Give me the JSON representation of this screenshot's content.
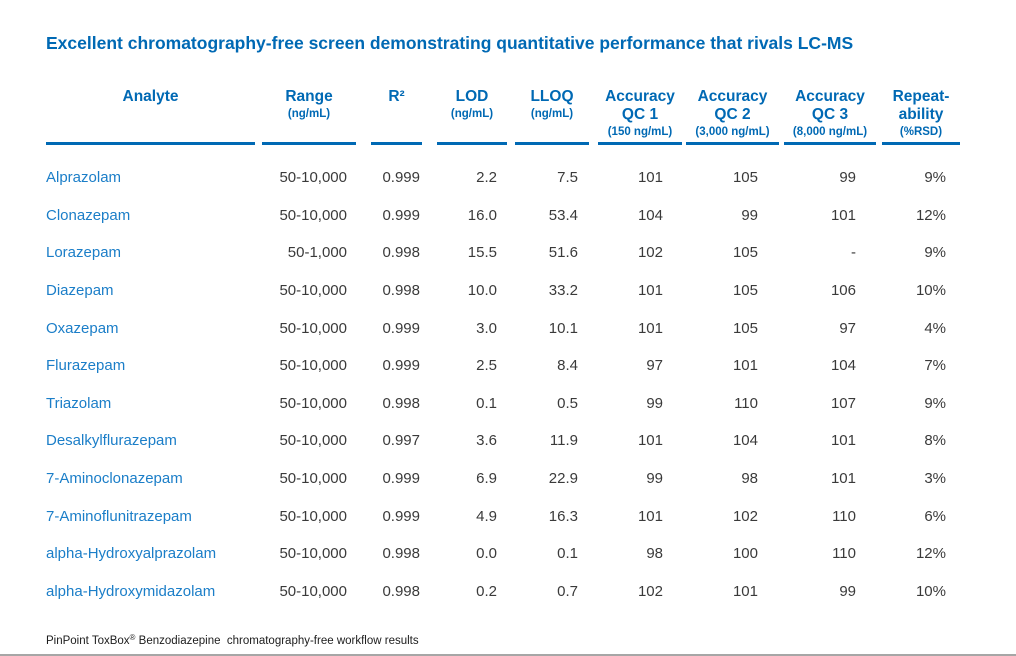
{
  "colors": {
    "header_blue": "#0069b4",
    "analyte_blue": "#1b7ec8",
    "value_text": "#3a3a3a",
    "footer_text": "#1c1c1c",
    "divider_gray": "#a6a6a6"
  },
  "chart_data": {
    "type": "table",
    "title": "Excellent chromatography-free screen demonstrating quantitative performance that rivals LC-MS",
    "columns": [
      {
        "key": "analyte",
        "label": "Analyte",
        "sub": ""
      },
      {
        "key": "range",
        "label": "Range",
        "sub": "(ng/mL)"
      },
      {
        "key": "r2",
        "label": "R²",
        "sub": ""
      },
      {
        "key": "lod",
        "label": "LOD",
        "sub": "(ng/mL)"
      },
      {
        "key": "lloq",
        "label": "LLOQ",
        "sub": "(ng/mL)"
      },
      {
        "key": "qc1",
        "label": "Accuracy\nQC 1",
        "sub": "(150 ng/mL)"
      },
      {
        "key": "qc2",
        "label": "Accuracy\nQC 2",
        "sub": "(3,000 ng/mL)"
      },
      {
        "key": "qc3",
        "label": "Accuracy\nQC 3",
        "sub": "(8,000 ng/mL)"
      },
      {
        "key": "rsd",
        "label": "Repeat-\nability",
        "sub": "(%RSD)"
      }
    ],
    "rows": [
      [
        "Alprazolam",
        "50-10,000",
        "0.999",
        "2.2",
        "7.5",
        "101",
        "105",
        "99",
        "9%"
      ],
      [
        "Clonazepam",
        "50-10,000",
        "0.999",
        "16.0",
        "53.4",
        "104",
        "99",
        "101",
        "12%"
      ],
      [
        "Lorazepam",
        "50-1,000",
        "0.998",
        "15.5",
        "51.6",
        "102",
        "105",
        "-",
        "9%"
      ],
      [
        "Diazepam",
        "50-10,000",
        "0.998",
        "10.0",
        "33.2",
        "101",
        "105",
        "106",
        "10%"
      ],
      [
        "Oxazepam",
        "50-10,000",
        "0.999",
        "3.0",
        "10.1",
        "101",
        "105",
        "97",
        "4%"
      ],
      [
        "Flurazepam",
        "50-10,000",
        "0.999",
        "2.5",
        "8.4",
        "97",
        "101",
        "104",
        "7%"
      ],
      [
        "Triazolam",
        "50-10,000",
        "0.998",
        "0.1",
        "0.5",
        "99",
        "110",
        "107",
        "9%"
      ],
      [
        "Desalkylflurazepam",
        "50-10,000",
        "0.997",
        "3.6",
        "11.9",
        "101",
        "104",
        "101",
        "8%"
      ],
      [
        "7-Aminoclonazepam",
        "50-10,000",
        "0.999",
        "6.9",
        "22.9",
        "99",
        "98",
        "101",
        "3%"
      ],
      [
        "7-Aminoflunitrazepam",
        "50-10,000",
        "0.999",
        "4.9",
        "16.3",
        "101",
        "102",
        "110",
        "6%"
      ],
      [
        "alpha-Hydroxyalprazolam",
        "50-10,000",
        "0.998",
        "0.0",
        "0.1",
        "98",
        "100",
        "110",
        "12%"
      ],
      [
        "alpha-Hydroxymidazolam",
        "50-10,000",
        "0.998",
        "0.2",
        "0.7",
        "102",
        "101",
        "99",
        "10%"
      ]
    ],
    "footnote": {
      "brand": "PinPoint ToxBox",
      "registered_mark": "®",
      "text": " Benzodiazepine  chromatography-free workflow results"
    }
  }
}
